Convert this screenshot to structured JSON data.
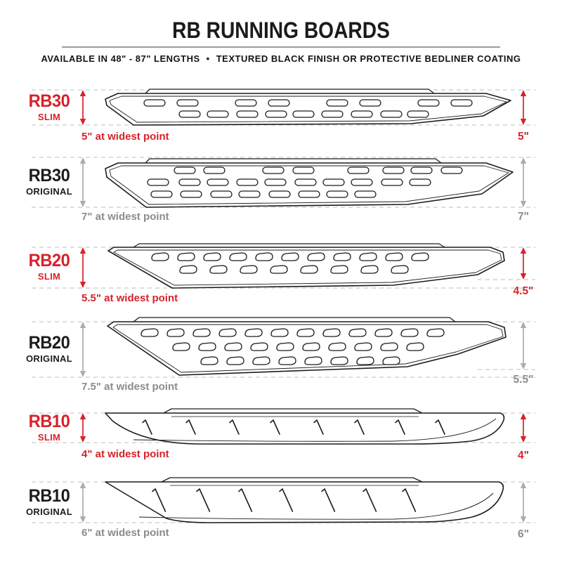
{
  "header": {
    "title": "RB RUNNING BOARDS",
    "subtitle_left": "AVAILABLE IN 48\" - 87\" LENGTHS",
    "subtitle_separator": "•",
    "subtitle_right": "TEXTURED BLACK FINISH OR PROTECTIVE BEDLINER COATING"
  },
  "colors": {
    "accent": "#d7222a",
    "ink": "#1c1c1c",
    "gray_text": "#8c8c8c",
    "gray_arrow": "#acacac",
    "dash": "#cbcbcb"
  },
  "rows": [
    {
      "model": "RB30",
      "variant": "SLIM",
      "accent": "red",
      "widest_note": "5\" at widest point",
      "height_label": "5\""
    },
    {
      "model": "RB30",
      "variant": "ORIGINAL",
      "accent": "gray",
      "widest_note": "7\" at widest point",
      "height_label": "7\""
    },
    {
      "model": "RB20",
      "variant": "SLIM",
      "accent": "red",
      "widest_note": "5.5\" at widest point",
      "height_label": "4.5\""
    },
    {
      "model": "RB20",
      "variant": "ORIGINAL",
      "accent": "gray",
      "widest_note": "7.5\" at widest point",
      "height_label": "5.5\""
    },
    {
      "model": "RB10",
      "variant": "SLIM",
      "accent": "red",
      "widest_note": "4\" at widest point",
      "height_label": "4\""
    },
    {
      "model": "RB10",
      "variant": "ORIGINAL",
      "accent": "gray",
      "widest_note": "6\" at widest point",
      "height_label": "6\""
    }
  ]
}
